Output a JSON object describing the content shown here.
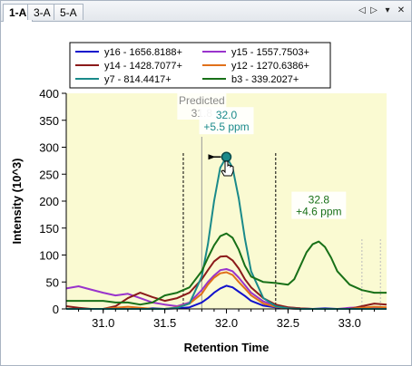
{
  "tabs": [
    {
      "label": "1-A",
      "active": true
    },
    {
      "label": "3-A",
      "active": false
    },
    {
      "label": "5-A",
      "active": false
    }
  ],
  "tab_controls": {
    "prev_icon": "◁",
    "next_icon": "▷",
    "menu_icon": "▾",
    "close_icon": "✕"
  },
  "chart_data": {
    "type": "line",
    "title": "",
    "xlabel": "Retention Time",
    "ylabel": "Intensity (10^3)",
    "xlim": [
      30.7,
      33.3
    ],
    "ylim": [
      0,
      400
    ],
    "xticks": [
      31.0,
      31.5,
      32.0,
      32.5,
      33.0
    ],
    "xtick_labels": [
      "31.0",
      "31.5",
      "32.0",
      "32.5",
      "33.0"
    ],
    "yticks": [
      0,
      50,
      100,
      150,
      200,
      250,
      300,
      350,
      400
    ],
    "ytick_labels": [
      "0",
      "50",
      "100",
      "150",
      "200",
      "250",
      "300",
      "350",
      "400"
    ],
    "plot_background": "#fafad2",
    "legend_position": "top",
    "series": [
      {
        "name": "y16 - 1656.8188+",
        "color": "#1111cc",
        "x": [
          30.7,
          30.8,
          30.9,
          31.0,
          31.1,
          31.2,
          31.3,
          31.4,
          31.5,
          31.6,
          31.7,
          31.8,
          31.85,
          31.9,
          31.95,
          32.0,
          32.05,
          32.1,
          32.15,
          32.2,
          32.3,
          32.4,
          32.5,
          32.6,
          32.7,
          32.8,
          32.9,
          33.0,
          33.1,
          33.2,
          33.3
        ],
        "y": [
          0,
          0,
          0,
          0,
          1,
          0,
          0,
          1,
          0,
          1,
          3,
          12,
          20,
          30,
          38,
          43,
          40,
          32,
          24,
          15,
          6,
          3,
          1,
          0,
          0,
          1,
          0,
          0,
          0,
          0,
          0
        ]
      },
      {
        "name": "y15 - 1557.7503+",
        "color": "#9933cc",
        "x": [
          30.7,
          30.8,
          30.9,
          31.0,
          31.1,
          31.2,
          31.3,
          31.4,
          31.5,
          31.6,
          31.7,
          31.8,
          31.85,
          31.9,
          31.95,
          32.0,
          32.05,
          32.1,
          32.15,
          32.2,
          32.3,
          32.4,
          32.5,
          32.6,
          32.7,
          32.8,
          32.9,
          33.0,
          33.1,
          33.2,
          33.3
        ],
        "y": [
          38,
          42,
          36,
          30,
          25,
          28,
          20,
          12,
          8,
          5,
          12,
          35,
          50,
          62,
          72,
          74,
          70,
          58,
          44,
          30,
          14,
          6,
          3,
          1,
          0,
          0,
          0,
          2,
          3,
          2,
          0
        ]
      },
      {
        "name": "y14 - 1428.7077+",
        "color": "#8b1a1a",
        "x": [
          30.7,
          30.8,
          30.9,
          31.0,
          31.1,
          31.2,
          31.3,
          31.4,
          31.5,
          31.6,
          31.7,
          31.8,
          31.85,
          31.9,
          31.95,
          32.0,
          32.05,
          32.1,
          32.15,
          32.2,
          32.3,
          32.4,
          32.5,
          32.6,
          32.7,
          32.8,
          32.9,
          33.0,
          33.1,
          33.2,
          33.3
        ],
        "y": [
          5,
          2,
          0,
          0,
          5,
          20,
          30,
          22,
          15,
          20,
          30,
          55,
          72,
          88,
          97,
          98,
          90,
          75,
          55,
          40,
          20,
          8,
          3,
          1,
          0,
          0,
          0,
          0,
          5,
          10,
          8
        ]
      },
      {
        "name": "y12 - 1270.6386+",
        "color": "#e0701a",
        "x": [
          30.7,
          30.8,
          30.9,
          31.0,
          31.1,
          31.2,
          31.3,
          31.4,
          31.5,
          31.6,
          31.7,
          31.8,
          31.85,
          31.9,
          31.95,
          32.0,
          32.05,
          32.1,
          32.15,
          32.2,
          32.3,
          32.4,
          32.5,
          32.6,
          32.7,
          32.8,
          32.9,
          33.0,
          33.1,
          33.2,
          33.3
        ],
        "y": [
          0,
          0,
          0,
          0,
          2,
          4,
          2,
          0,
          0,
          3,
          10,
          28,
          45,
          58,
          66,
          68,
          63,
          50,
          38,
          25,
          10,
          4,
          1,
          0,
          0,
          0,
          0,
          0,
          2,
          4,
          3
        ]
      },
      {
        "name": "y7 - 814.4417+",
        "color": "#1a8a8a",
        "x": [
          30.7,
          30.8,
          30.9,
          31.0,
          31.1,
          31.2,
          31.3,
          31.4,
          31.5,
          31.6,
          31.7,
          31.8,
          31.85,
          31.9,
          31.95,
          32.0,
          32.05,
          32.1,
          32.15,
          32.2,
          32.3,
          32.4,
          32.5,
          32.6,
          32.7,
          32.8,
          32.9,
          33.0,
          33.1,
          33.2,
          33.3
        ],
        "y": [
          0,
          0,
          0,
          0,
          0,
          0,
          0,
          0,
          0,
          2,
          10,
          60,
          120,
          200,
          262,
          282,
          262,
          205,
          130,
          70,
          20,
          5,
          1,
          0,
          0,
          0,
          0,
          0,
          0,
          0,
          0
        ]
      },
      {
        "name": "b3 - 339.2027+",
        "color": "#187018",
        "x": [
          30.7,
          30.8,
          30.9,
          31.0,
          31.1,
          31.2,
          31.3,
          31.4,
          31.5,
          31.6,
          31.7,
          31.8,
          31.85,
          31.9,
          31.95,
          32.0,
          32.05,
          32.1,
          32.15,
          32.2,
          32.3,
          32.4,
          32.5,
          32.55,
          32.6,
          32.65,
          32.7,
          32.75,
          32.8,
          32.85,
          32.9,
          33.0,
          33.1,
          33.2,
          33.3
        ],
        "y": [
          15,
          15,
          15,
          15,
          12,
          12,
          8,
          12,
          25,
          30,
          40,
          70,
          95,
          118,
          135,
          140,
          132,
          110,
          80,
          60,
          50,
          48,
          45,
          55,
          80,
          105,
          120,
          125,
          115,
          95,
          70,
          45,
          35,
          30,
          30
        ]
      }
    ],
    "legend_columns": [
      [
        "y16 - 1656.8188+",
        "y14 - 1428.7077+",
        "y7 - 814.4417+"
      ],
      [
        "y15 - 1557.7503+",
        "y12 - 1270.6386+",
        "b3 - 339.2027+"
      ]
    ],
    "predicted": {
      "label": "Predicted",
      "value": "31.8",
      "x": 31.8
    },
    "integration_bounds": [
      31.65,
      32.4
    ],
    "extra_markers": [
      33.1,
      33.25
    ],
    "annotations": [
      {
        "line1": "32.0",
        "line2": "+5.5 ppm",
        "x": 32.0,
        "y": 282,
        "color": "#1a8a8a"
      },
      {
        "line1": "32.8",
        "line2": "+4.6 ppm",
        "x": 32.75,
        "y": 125,
        "color": "#187018"
      }
    ]
  }
}
